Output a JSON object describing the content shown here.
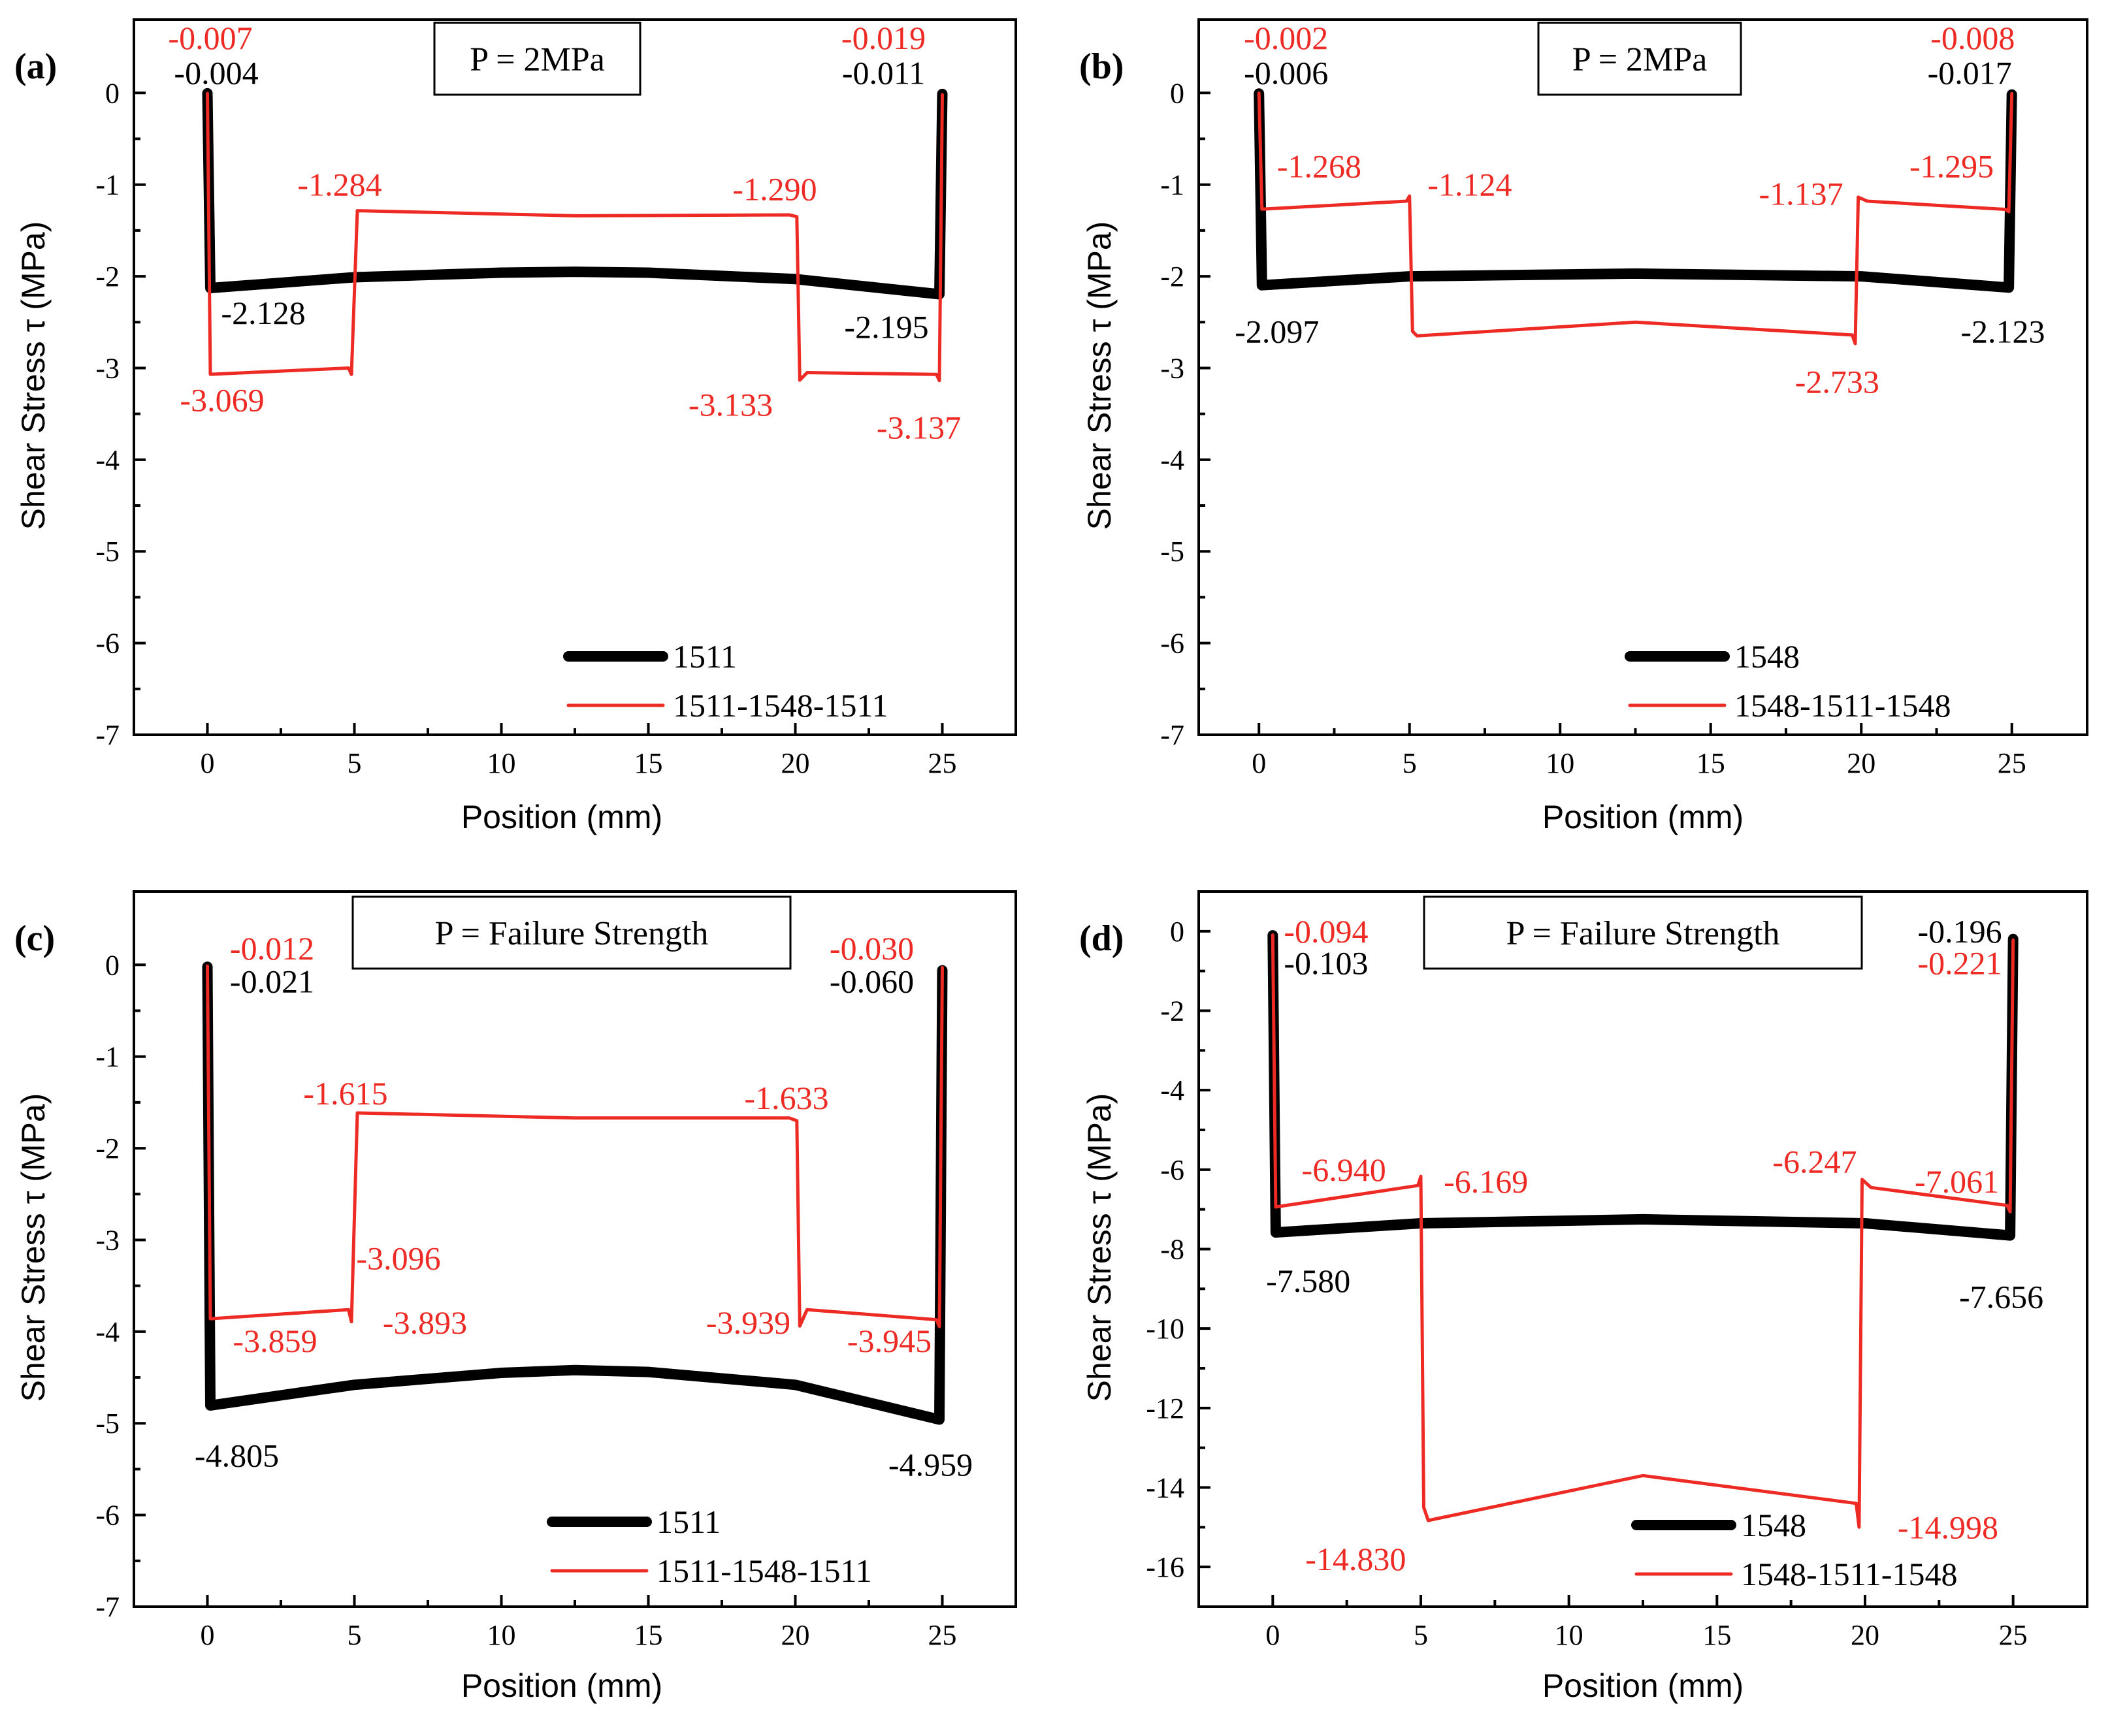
{
  "xlabel": "Position (mm)",
  "ylabel": "Shear Stress  τ (MPa)",
  "colors": {
    "series1": "#000000",
    "series2": "#ee2a24"
  },
  "chart_data": [
    {
      "type": "line",
      "panel": "(a)",
      "condition": "P = 2MPa",
      "xlim": [
        -2.5,
        27.5
      ],
      "ylim": [
        -7,
        0.8
      ],
      "xticks": [
        0,
        5,
        10,
        15,
        20,
        25
      ],
      "yticks": [
        0,
        -1,
        -2,
        -3,
        -4,
        -5,
        -6,
        -7
      ],
      "series": [
        {
          "name": "1511",
          "color": "#000000",
          "points": [
            [
              0,
              -0.004
            ],
            [
              0.1,
              -2.128
            ],
            [
              5,
              -2.01
            ],
            [
              10,
              -1.96
            ],
            [
              12.5,
              -1.95
            ],
            [
              15,
              -1.96
            ],
            [
              20,
              -2.03
            ],
            [
              24.9,
              -2.195
            ],
            [
              25,
              -0.011
            ]
          ]
        },
        {
          "name": "1511-1548-1511",
          "color": "#ee2a24",
          "points": [
            [
              0,
              -0.007
            ],
            [
              0.1,
              -3.069
            ],
            [
              4.8,
              -3.0
            ],
            [
              4.9,
              -3.07
            ],
            [
              5.1,
              -1.284
            ],
            [
              12.5,
              -1.34
            ],
            [
              19.8,
              -1.33
            ],
            [
              20.05,
              -1.35
            ],
            [
              20.15,
              -3.133
            ],
            [
              20.4,
              -3.05
            ],
            [
              24.8,
              -3.07
            ],
            [
              24.9,
              -3.137
            ],
            [
              25,
              -0.019
            ]
          ]
        }
      ],
      "annotations": [
        {
          "text": "-0.007",
          "color": "red",
          "x": 0.1,
          "y": 0.6
        },
        {
          "text": "-0.004",
          "color": "black",
          "x": 0.3,
          "y": 0.22
        },
        {
          "text": "-0.019",
          "color": "red",
          "x": 23.0,
          "y": 0.6
        },
        {
          "text": "-0.011",
          "color": "black",
          "x": 23.0,
          "y": 0.22
        },
        {
          "text": "-1.284",
          "color": "red",
          "x": 4.5,
          "y": -1.0
        },
        {
          "text": "-1.290",
          "color": "red",
          "x": 19.3,
          "y": -1.05
        },
        {
          "text": "-2.128",
          "color": "black",
          "x": 1.9,
          "y": -2.4
        },
        {
          "text": "-2.195",
          "color": "black",
          "x": 23.1,
          "y": -2.55
        },
        {
          "text": "-3.069",
          "color": "red",
          "x": 0.5,
          "y": -3.35
        },
        {
          "text": "-3.133",
          "color": "red",
          "x": 17.8,
          "y": -3.4
        },
        {
          "text": "-3.137",
          "color": "red",
          "x": 24.2,
          "y": -3.65
        }
      ]
    },
    {
      "type": "line",
      "panel": "(b)",
      "condition": "P = 2MPa",
      "xlim": [
        -2,
        27.5
      ],
      "ylim": [
        -7,
        0.8
      ],
      "xticks": [
        0,
        5,
        10,
        15,
        20,
        25
      ],
      "yticks": [
        0,
        -1,
        -2,
        -3,
        -4,
        -5,
        -6,
        -7
      ],
      "series": [
        {
          "name": "1548",
          "color": "#000000",
          "points": [
            [
              0,
              -0.006
            ],
            [
              0.1,
              -2.097
            ],
            [
              5,
              -2.0
            ],
            [
              12.5,
              -1.97
            ],
            [
              20,
              -2.0
            ],
            [
              24.9,
              -2.123
            ],
            [
              25,
              -0.017
            ]
          ]
        },
        {
          "name": "1548-1511-1548",
          "color": "#ee2a24",
          "points": [
            [
              0,
              -0.002
            ],
            [
              0.1,
              -1.268
            ],
            [
              4.9,
              -1.18
            ],
            [
              5.0,
              -1.124
            ],
            [
              5.1,
              -2.6
            ],
            [
              5.25,
              -2.65
            ],
            [
              12.5,
              -2.5
            ],
            [
              19.7,
              -2.64
            ],
            [
              19.8,
              -2.733
            ],
            [
              19.9,
              -1.137
            ],
            [
              20.2,
              -1.18
            ],
            [
              24.8,
              -1.27
            ],
            [
              24.9,
              -1.295
            ],
            [
              25,
              -0.008
            ]
          ]
        }
      ],
      "annotations": [
        {
          "text": "-0.002",
          "color": "red",
          "x": 0.9,
          "y": 0.6
        },
        {
          "text": "-0.006",
          "color": "black",
          "x": 0.9,
          "y": 0.22
        },
        {
          "text": "-0.008",
          "color": "red",
          "x": 23.7,
          "y": 0.6
        },
        {
          "text": "-0.017",
          "color": "black",
          "x": 23.6,
          "y": 0.22
        },
        {
          "text": "-1.268",
          "color": "red",
          "x": 2.0,
          "y": -0.8
        },
        {
          "text": "-1.124",
          "color": "red",
          "x": 7.0,
          "y": -1.0
        },
        {
          "text": "-1.137",
          "color": "red",
          "x": 18.0,
          "y": -1.1
        },
        {
          "text": "-1.295",
          "color": "red",
          "x": 23.0,
          "y": -0.8
        },
        {
          "text": "-2.097",
          "color": "black",
          "x": 0.6,
          "y": -2.6
        },
        {
          "text": "-2.123",
          "color": "black",
          "x": 24.7,
          "y": -2.6
        },
        {
          "text": "-2.733",
          "color": "red",
          "x": 19.2,
          "y": -3.15
        }
      ]
    },
    {
      "type": "line",
      "panel": "(c)",
      "condition": "P = Failure Strength",
      "xlim": [
        -2.5,
        27.5
      ],
      "ylim": [
        -7,
        0.8
      ],
      "xticks": [
        0,
        5,
        10,
        15,
        20,
        25
      ],
      "yticks": [
        0,
        -1,
        -2,
        -3,
        -4,
        -5,
        -6,
        -7
      ],
      "series": [
        {
          "name": "1511",
          "color": "#000000",
          "points": [
            [
              0,
              -0.021
            ],
            [
              0.1,
              -4.805
            ],
            [
              5,
              -4.58
            ],
            [
              10,
              -4.45
            ],
            [
              12.5,
              -4.42
            ],
            [
              15,
              -4.44
            ],
            [
              20,
              -4.58
            ],
            [
              24.9,
              -4.959
            ],
            [
              25,
              -0.06
            ]
          ]
        },
        {
          "name": "1511-1548-1511",
          "color": "#ee2a24",
          "points": [
            [
              0,
              -0.012
            ],
            [
              0.1,
              -3.859
            ],
            [
              4.8,
              -3.76
            ],
            [
              4.9,
              -3.893
            ],
            [
              5.1,
              -1.615
            ],
            [
              12.5,
              -1.67
            ],
            [
              19.8,
              -1.67
            ],
            [
              20.05,
              -1.7
            ],
            [
              20.15,
              -3.939
            ],
            [
              20.4,
              -3.76
            ],
            [
              24.8,
              -3.87
            ],
            [
              24.9,
              -3.945
            ],
            [
              25,
              -0.03
            ]
          ]
        }
      ],
      "annotations": [
        {
          "text": "-0.012",
          "color": "red",
          "x": 2.2,
          "y": 0.18
        },
        {
          "text": "-0.021",
          "color": "black",
          "x": 2.2,
          "y": -0.18
        },
        {
          "text": "-0.030",
          "color": "red",
          "x": 22.6,
          "y": 0.18
        },
        {
          "text": "-0.060",
          "color": "black",
          "x": 22.6,
          "y": -0.18
        },
        {
          "text": "-1.615",
          "color": "red",
          "x": 4.7,
          "y": -1.4
        },
        {
          "text": "-1.633",
          "color": "red",
          "x": 19.7,
          "y": -1.45
        },
        {
          "text": "-3.096",
          "color": "red",
          "x": 6.5,
          "y": -3.2
        },
        {
          "text": "-3.859",
          "color": "red",
          "x": 2.3,
          "y": -4.1
        },
        {
          "text": "-3.893",
          "color": "red",
          "x": 7.4,
          "y": -3.9
        },
        {
          "text": "-3.939",
          "color": "red",
          "x": 18.4,
          "y": -3.9
        },
        {
          "text": "-3.945",
          "color": "red",
          "x": 23.2,
          "y": -4.1
        },
        {
          "text": "-4.805",
          "color": "black",
          "x": 1.0,
          "y": -5.35
        },
        {
          "text": "-4.959",
          "color": "black",
          "x": 24.6,
          "y": -5.45
        }
      ]
    },
    {
      "type": "line",
      "panel": "(d)",
      "condition": "P = Failure Strength",
      "xlim": [
        -2.5,
        27.5
      ],
      "ylim": [
        -17,
        1.0
      ],
      "xticks": [
        0,
        5,
        10,
        15,
        20,
        25
      ],
      "yticks": [
        0,
        -2,
        -4,
        -6,
        -8,
        -10,
        -12,
        -14,
        -16
      ],
      "series": [
        {
          "name": "1548",
          "color": "#000000",
          "points": [
            [
              0,
              -0.103
            ],
            [
              0.1,
              -7.58
            ],
            [
              5,
              -7.35
            ],
            [
              12.5,
              -7.25
            ],
            [
              20,
              -7.35
            ],
            [
              24.9,
              -7.656
            ],
            [
              25,
              -0.196
            ]
          ]
        },
        {
          "name": "1548-1511-1548",
          "color": "#ee2a24",
          "points": [
            [
              0,
              -0.094
            ],
            [
              0.1,
              -6.94
            ],
            [
              4.9,
              -6.4
            ],
            [
              5.0,
              -6.169
            ],
            [
              5.1,
              -14.5
            ],
            [
              5.25,
              -14.83
            ],
            [
              12.5,
              -13.7
            ],
            [
              19.7,
              -14.4
            ],
            [
              19.8,
              -14.998
            ],
            [
              19.9,
              -6.247
            ],
            [
              20.2,
              -6.45
            ],
            [
              24.8,
              -6.9
            ],
            [
              24.9,
              -7.061
            ],
            [
              25,
              -0.221
            ]
          ]
        }
      ],
      "annotations": [
        {
          "text": "-0.094",
          "color": "red",
          "x": 1.8,
          "y": 0.0
        },
        {
          "text": "-0.103",
          "color": "black",
          "x": 1.8,
          "y": -0.8
        },
        {
          "text": "-0.196",
          "color": "black",
          "x": 23.2,
          "y": 0.0
        },
        {
          "text": "-0.221",
          "color": "red",
          "x": 23.2,
          "y": -0.8
        },
        {
          "text": "-6.940",
          "color": "red",
          "x": 2.4,
          "y": -6.0
        },
        {
          "text": "-6.169",
          "color": "red",
          "x": 7.2,
          "y": -6.3
        },
        {
          "text": "-6.247",
          "color": "red",
          "x": 18.3,
          "y": -5.8
        },
        {
          "text": "-7.061",
          "color": "red",
          "x": 23.1,
          "y": -6.3
        },
        {
          "text": "-7.580",
          "color": "black",
          "x": 1.2,
          "y": -8.8
        },
        {
          "text": "-7.656",
          "color": "black",
          "x": 24.6,
          "y": -9.2
        },
        {
          "text": "-14.830",
          "color": "red",
          "x": 2.8,
          "y": -15.8
        },
        {
          "text": "-14.998",
          "color": "red",
          "x": 22.8,
          "y": -15.0
        }
      ]
    }
  ]
}
